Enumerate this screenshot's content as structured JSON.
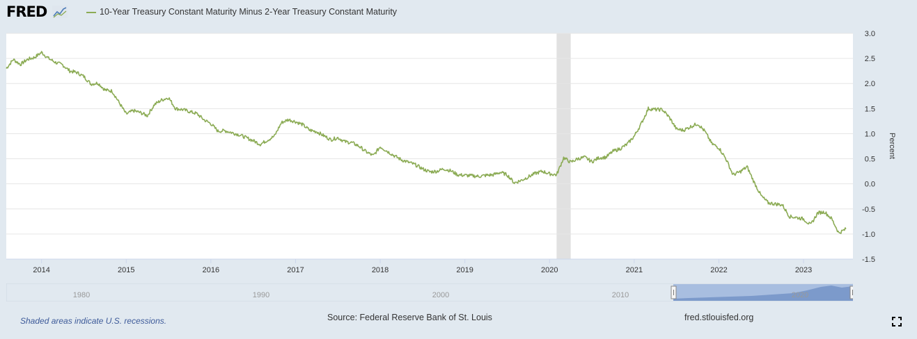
{
  "header": {
    "logo_text": "FRED",
    "logo_icon": "trend-line-icon",
    "legend_label": "10-Year Treasury Constant Maturity Minus 2-Year Treasury Constant Maturity"
  },
  "chart_data": {
    "type": "line",
    "title": "",
    "ylabel": "Percent",
    "xlabel": "",
    "ylim": [
      -1.5,
      3.0
    ],
    "xlim": [
      "2013-08-01",
      "2023-08-01"
    ],
    "y_ticks": [
      "3.0",
      "2.5",
      "2.0",
      "1.5",
      "1.0",
      "0.5",
      "0.0",
      "-0.5",
      "-1.0",
      "-1.5"
    ],
    "x_ticks": [
      "2014",
      "2015",
      "2016",
      "2017",
      "2018",
      "2019",
      "2020",
      "2021",
      "2022",
      "2023"
    ],
    "grid": true,
    "recessions": [
      {
        "start": "2020-02",
        "end": "2020-04"
      }
    ],
    "series": [
      {
        "name": "10-Year Treasury Constant Maturity Minus 2-Year Treasury Constant Maturity",
        "color": "#8bab54",
        "points": [
          [
            "2013-08",
            2.3
          ],
          [
            "2013-09",
            2.48
          ],
          [
            "2013-10",
            2.38
          ],
          [
            "2013-11",
            2.48
          ],
          [
            "2013-12",
            2.52
          ],
          [
            "2014-01",
            2.62
          ],
          [
            "2014-02",
            2.5
          ],
          [
            "2014-03",
            2.42
          ],
          [
            "2014-04",
            2.37
          ],
          [
            "2014-05",
            2.25
          ],
          [
            "2014-06",
            2.22
          ],
          [
            "2014-07",
            2.14
          ],
          [
            "2014-08",
            1.99
          ],
          [
            "2014-09",
            2.01
          ],
          [
            "2014-10",
            1.87
          ],
          [
            "2014-11",
            1.85
          ],
          [
            "2014-12",
            1.62
          ],
          [
            "2015-01",
            1.39
          ],
          [
            "2015-02",
            1.46
          ],
          [
            "2015-03",
            1.42
          ],
          [
            "2015-04",
            1.36
          ],
          [
            "2015-05",
            1.58
          ],
          [
            "2015-06",
            1.67
          ],
          [
            "2015-07",
            1.72
          ],
          [
            "2015-08",
            1.5
          ],
          [
            "2015-09",
            1.48
          ],
          [
            "2015-10",
            1.44
          ],
          [
            "2015-11",
            1.4
          ],
          [
            "2015-12",
            1.28
          ],
          [
            "2016-01",
            1.2
          ],
          [
            "2016-02",
            1.05
          ],
          [
            "2016-03",
            1.06
          ],
          [
            "2016-04",
            1.02
          ],
          [
            "2016-05",
            0.98
          ],
          [
            "2016-06",
            0.92
          ],
          [
            "2016-07",
            0.86
          ],
          [
            "2016-08",
            0.79
          ],
          [
            "2016-09",
            0.87
          ],
          [
            "2016-10",
            0.95
          ],
          [
            "2016-11",
            1.22
          ],
          [
            "2016-12",
            1.28
          ],
          [
            "2017-01",
            1.24
          ],
          [
            "2017-02",
            1.18
          ],
          [
            "2017-03",
            1.07
          ],
          [
            "2017-04",
            1.04
          ],
          [
            "2017-05",
            0.96
          ],
          [
            "2017-06",
            0.88
          ],
          [
            "2017-07",
            0.92
          ],
          [
            "2017-08",
            0.84
          ],
          [
            "2017-09",
            0.82
          ],
          [
            "2017-10",
            0.75
          ],
          [
            "2017-11",
            0.64
          ],
          [
            "2017-12",
            0.56
          ],
          [
            "2018-01",
            0.74
          ],
          [
            "2018-02",
            0.65
          ],
          [
            "2018-03",
            0.56
          ],
          [
            "2018-04",
            0.48
          ],
          [
            "2018-05",
            0.43
          ],
          [
            "2018-06",
            0.38
          ],
          [
            "2018-07",
            0.3
          ],
          [
            "2018-08",
            0.24
          ],
          [
            "2018-09",
            0.25
          ],
          [
            "2018-10",
            0.3
          ],
          [
            "2018-11",
            0.26
          ],
          [
            "2018-12",
            0.18
          ],
          [
            "2019-01",
            0.17
          ],
          [
            "2019-02",
            0.16
          ],
          [
            "2019-03",
            0.15
          ],
          [
            "2019-04",
            0.17
          ],
          [
            "2019-05",
            0.18
          ],
          [
            "2019-06",
            0.23
          ],
          [
            "2019-07",
            0.18
          ],
          [
            "2019-08",
            0.02
          ],
          [
            "2019-09",
            0.07
          ],
          [
            "2019-10",
            0.14
          ],
          [
            "2019-11",
            0.21
          ],
          [
            "2019-12",
            0.25
          ],
          [
            "2020-01",
            0.2
          ],
          [
            "2020-02",
            0.18
          ],
          [
            "2020-03",
            0.52
          ],
          [
            "2020-04",
            0.43
          ],
          [
            "2020-05",
            0.5
          ],
          [
            "2020-06",
            0.53
          ],
          [
            "2020-07",
            0.44
          ],
          [
            "2020-08",
            0.52
          ],
          [
            "2020-09",
            0.53
          ],
          [
            "2020-10",
            0.65
          ],
          [
            "2020-11",
            0.7
          ],
          [
            "2020-12",
            0.79
          ],
          [
            "2021-01",
            0.95
          ],
          [
            "2021-02",
            1.2
          ],
          [
            "2021-03",
            1.5
          ],
          [
            "2021-04",
            1.48
          ],
          [
            "2021-05",
            1.48
          ],
          [
            "2021-06",
            1.32
          ],
          [
            "2021-07",
            1.09
          ],
          [
            "2021-08",
            1.07
          ],
          [
            "2021-09",
            1.14
          ],
          [
            "2021-10",
            1.2
          ],
          [
            "2021-11",
            1.05
          ],
          [
            "2021-12",
            0.8
          ],
          [
            "2022-01",
            0.72
          ],
          [
            "2022-02",
            0.5
          ],
          [
            "2022-03",
            0.18
          ],
          [
            "2022-04",
            0.24
          ],
          [
            "2022-05",
            0.34
          ],
          [
            "2022-06",
            0.03
          ],
          [
            "2022-07",
            -0.24
          ],
          [
            "2022-08",
            -0.38
          ],
          [
            "2022-09",
            -0.4
          ],
          [
            "2022-10",
            -0.42
          ],
          [
            "2022-11",
            -0.65
          ],
          [
            "2022-12",
            -0.67
          ],
          [
            "2023-01",
            -0.7
          ],
          [
            "2023-02",
            -0.82
          ],
          [
            "2023-03",
            -0.58
          ],
          [
            "2023-04",
            -0.56
          ],
          [
            "2023-05",
            -0.7
          ],
          [
            "2023-06",
            -0.98
          ],
          [
            "2023-07",
            -0.9
          ]
        ]
      }
    ]
  },
  "navigator": {
    "ticks": [
      "1980",
      "1990",
      "2000",
      "2010"
    ],
    "visible_tick_2020": "2020"
  },
  "footer": {
    "recession_note": "Shaded areas indicate U.S. recessions.",
    "source": "Source: Federal Reserve Bank of St. Louis",
    "url": "fred.stlouisfed.org",
    "fullscreen_icon": "fullscreen-icon"
  }
}
